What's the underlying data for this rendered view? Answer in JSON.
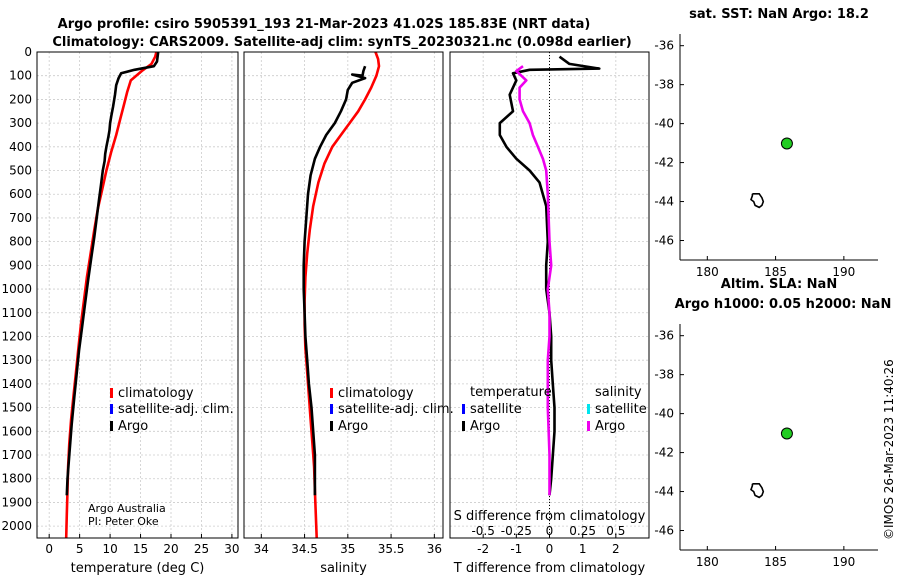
{
  "header": {
    "line1": "Argo profile: csiro 5905391_193 21-Mar-2023 41.02S 185.83E (NRT data)",
    "line2": "Climatology: CARS2009. Satellite-adj clim: synTS_20230321.nc (0.098d earlier)"
  },
  "credit": {
    "line1": "Argo Australia",
    "line2": "PI: Peter Oke"
  },
  "watermark": "©IMOS 26-Mar-2023 11:40:26",
  "colors": {
    "climatology": "#ff0000",
    "satellite": "#0000ff",
    "argo": "#000000",
    "sat_salinity": "#00e5ee",
    "argo_salinity": "#ee00ee",
    "marker": "#22cc22"
  },
  "legend_profiles": {
    "climatology": "climatology",
    "satellite": "satellite-adj. clim.",
    "argo": "Argo"
  },
  "legend_diff": {
    "temperature_head": "temperature",
    "salinity_head": "salinity",
    "satellite": "satellite",
    "argo": "Argo"
  },
  "chart_data": [
    {
      "type": "line",
      "title": "",
      "xlabel": "temperature (deg C)",
      "ylabel": "",
      "xlim": [
        -2,
        31
      ],
      "ylim": [
        2050,
        0
      ],
      "xticks": [
        0,
        5,
        10,
        15,
        20,
        25,
        30
      ],
      "yticks": [
        0,
        100,
        200,
        300,
        400,
        500,
        600,
        700,
        800,
        900,
        1000,
        1100,
        1200,
        1300,
        1400,
        1500,
        1600,
        1700,
        1800,
        1900,
        2000
      ],
      "series": [
        {
          "name": "climatology",
          "color": "#ff0000",
          "x": [
            17.6,
            17.4,
            16.8,
            15.2,
            13.4,
            12.8,
            12.3,
            11.7,
            11.0,
            10.2,
            9.4,
            8.7,
            8.0,
            7.4,
            6.8,
            6.2,
            5.7,
            5.2,
            4.8,
            4.4,
            4.0,
            3.6,
            3.3,
            3.1,
            3.0,
            2.9,
            2.85,
            2.8
          ],
          "depth": [
            0,
            20,
            50,
            80,
            120,
            170,
            220,
            280,
            350,
            420,
            500,
            580,
            660,
            750,
            850,
            950,
            1050,
            1150,
            1250,
            1350,
            1450,
            1550,
            1650,
            1750,
            1850,
            1950,
            2000,
            2050
          ]
        },
        {
          "name": "Argo",
          "color": "#000000",
          "x": [
            17.9,
            17.8,
            17.7,
            17.2,
            14.0,
            11.8,
            11.4,
            11.0,
            10.8,
            10.5,
            10.2,
            10.0,
            9.9,
            9.7,
            9.4,
            9.2,
            9.1,
            8.8,
            8.5,
            8.2,
            7.8,
            7.4,
            6.9,
            6.4,
            5.9,
            5.4,
            4.9,
            4.5,
            4.1,
            3.7,
            3.3,
            3.0,
            2.9
          ],
          "depth": [
            0,
            20,
            40,
            60,
            75,
            90,
            110,
            140,
            180,
            230,
            270,
            300,
            330,
            360,
            400,
            430,
            460,
            500,
            560,
            620,
            700,
            780,
            870,
            960,
            1060,
            1160,
            1260,
            1360,
            1460,
            1570,
            1700,
            1800,
            1870
          ]
        }
      ]
    },
    {
      "type": "line",
      "title": "",
      "xlabel": "salinity",
      "ylabel": "",
      "xlim": [
        33.8,
        36.1
      ],
      "ylim": [
        2050,
        0
      ],
      "xticks": [
        34,
        34.5,
        35,
        35.5,
        36
      ],
      "series": [
        {
          "name": "climatology",
          "color": "#ff0000",
          "x": [
            35.32,
            35.35,
            35.36,
            35.33,
            35.27,
            35.2,
            35.12,
            35.02,
            34.92,
            34.82,
            34.73,
            34.66,
            34.6,
            34.56,
            34.53,
            34.51,
            34.5,
            34.5,
            34.51,
            34.53,
            34.55,
            34.57,
            34.59,
            34.61,
            34.62,
            34.63,
            34.64
          ],
          "depth": [
            0,
            30,
            60,
            100,
            150,
            200,
            250,
            300,
            350,
            400,
            470,
            550,
            650,
            750,
            850,
            950,
            1050,
            1150,
            1250,
            1350,
            1450,
            1550,
            1650,
            1750,
            1850,
            1950,
            2050
          ]
        },
        {
          "name": "Argo",
          "color": "#000000",
          "x": [
            35.2,
            35.18,
            35.17,
            35.05,
            35.2,
            35.05,
            35.0,
            34.98,
            34.92,
            34.85,
            34.75,
            34.68,
            34.62,
            34.57,
            34.54,
            34.52,
            34.5,
            34.49,
            34.49,
            34.5,
            34.51,
            34.53,
            34.55,
            34.58,
            34.6,
            34.62,
            34.62
          ],
          "depth": [
            60,
            80,
            100,
            95,
            110,
            130,
            160,
            200,
            250,
            300,
            350,
            400,
            450,
            520,
            600,
            700,
            800,
            900,
            1000,
            1100,
            1200,
            1300,
            1400,
            1500,
            1600,
            1700,
            1870
          ]
        }
      ]
    },
    {
      "type": "line",
      "title": "",
      "xlabel": "T difference from climatology",
      "ylabel": "",
      "xlim": [
        -3,
        3
      ],
      "ylim": [
        2050,
        0
      ],
      "xticks": [
        -2,
        -1,
        0,
        1,
        2
      ],
      "secondary_xlabel": "S difference from climatology",
      "secondary_xticks": [
        -0.5,
        -0.25,
        0,
        0.25,
        0.5
      ],
      "series": [
        {
          "name": "temperature Argo",
          "color": "#000000",
          "x": [
            0.3,
            0.6,
            1.5,
            -0.6,
            -1.1,
            -1.0,
            -1.2,
            -1.1,
            -1.5,
            -1.5,
            -1.3,
            -1.0,
            -0.6,
            -0.3,
            -0.1,
            -0.05,
            -0.1,
            -0.1,
            0.0,
            0.05,
            0.05,
            0.1,
            0.15,
            0.15,
            0.05,
            0.0
          ],
          "depth": [
            20,
            50,
            70,
            75,
            90,
            120,
            180,
            250,
            300,
            350,
            400,
            450,
            500,
            550,
            650,
            800,
            900,
            1000,
            1100,
            1200,
            1300,
            1400,
            1500,
            1600,
            1800,
            1870
          ]
        },
        {
          "name": "salinity Argo",
          "color": "#ee00ee",
          "x": [
            -0.8,
            -1.0,
            -0.85,
            -0.7,
            -0.9,
            -0.9,
            -0.8,
            -0.6,
            -0.5,
            -0.35,
            -0.2,
            -0.1,
            -0.05,
            0.0,
            0.05,
            -0.05,
            0.0,
            0.0,
            -0.05,
            -0.05,
            -0.05,
            0.0,
            0.0
          ],
          "depth": [
            60,
            80,
            100,
            120,
            150,
            200,
            250,
            300,
            350,
            400,
            450,
            500,
            600,
            800,
            900,
            1000,
            1100,
            1200,
            1300,
            1400,
            1500,
            1700,
            1870
          ]
        }
      ]
    },
    {
      "type": "scatter",
      "title": "sat. SST: NaN Argo: 18.2",
      "xlim": [
        178,
        192.5
      ],
      "ylim": [
        -47,
        -35.4
      ],
      "xticks": [
        180,
        185,
        190
      ],
      "yticks": [
        -36,
        -38,
        -40,
        -42,
        -44,
        -46
      ],
      "points": [
        {
          "lon": 185.83,
          "lat": -41.02
        }
      ]
    },
    {
      "type": "scatter",
      "title": "Altim. SLA: NaN",
      "title2": "Argo h1000: 0.05 h2000: NaN",
      "xlim": [
        178,
        192.5
      ],
      "ylim": [
        -47,
        -35.4
      ],
      "xticks": [
        180,
        185,
        190
      ],
      "yticks": [
        -36,
        -38,
        -40,
        -42,
        -44,
        -46
      ],
      "points": [
        {
          "lon": 185.83,
          "lat": -41.02
        }
      ]
    }
  ]
}
